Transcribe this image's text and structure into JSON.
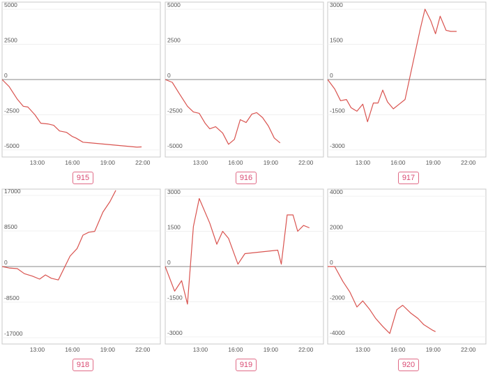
{
  "colors": {
    "line": "#d9534f",
    "zero_line": "#8a8a8a",
    "frame": "#c8c8c8",
    "grid": "#eeeeee",
    "badge": "#e06a86"
  },
  "chart_data": [
    {
      "type": "line",
      "title": "915",
      "ylim": [
        -5500,
        5500
      ],
      "xlim": [
        10,
        23.5
      ],
      "yticks": [
        5000,
        2500,
        0,
        -2500,
        -5000
      ],
      "ytick_labels": [
        "5000",
        "2500",
        "0",
        "-2500",
        "-5000"
      ],
      "xticks": [
        13,
        16,
        19,
        22
      ],
      "xtick_labels": [
        "13:00",
        "16:00",
        "19:00",
        "22:00"
      ],
      "series": [
        {
          "x": [
            10,
            10.6,
            11.3,
            11.8,
            12.2,
            12.8,
            13.3,
            13.9,
            14.4,
            14.9,
            15.5,
            16,
            16.3,
            16.9,
            21.5,
            21.9
          ],
          "y": [
            0,
            -500,
            -1400,
            -1900,
            -1950,
            -2500,
            -3100,
            -3150,
            -3250,
            -3650,
            -3750,
            -4050,
            -4150,
            -4450,
            -4800,
            -4780
          ]
        }
      ]
    },
    {
      "type": "line",
      "title": "916",
      "ylim": [
        -5500,
        5500
      ],
      "xlim": [
        10,
        23.5
      ],
      "yticks": [
        5000,
        2500,
        0,
        -2500,
        -5000
      ],
      "ytick_labels": [
        "5000",
        "2500",
        "0",
        "-2500",
        "-5000"
      ],
      "xticks": [
        13,
        16,
        19,
        22
      ],
      "xtick_labels": [
        "13:00",
        "16:00",
        "19:00",
        "22:00"
      ],
      "series": [
        {
          "x": [
            10,
            10.6,
            11.2,
            11.9,
            12.4,
            12.9,
            13.4,
            13.8,
            14.3,
            14.9,
            15.4,
            15.9,
            16.4,
            16.9,
            17.4,
            17.8,
            18.3,
            18.8,
            19.3,
            19.8
          ],
          "y": [
            0,
            -200,
            -1000,
            -1900,
            -2300,
            -2400,
            -3100,
            -3500,
            -3350,
            -3800,
            -4600,
            -4250,
            -2850,
            -3050,
            -2450,
            -2350,
            -2700,
            -3300,
            -4150,
            -4500
          ]
        }
      ]
    },
    {
      "type": "line",
      "title": "917",
      "ylim": [
        -3300,
        3300
      ],
      "xlim": [
        10,
        23.5
      ],
      "yticks": [
        3000,
        1500,
        0,
        -1500,
        -3000
      ],
      "ytick_labels": [
        "3000",
        "1500",
        "0",
        "-1500",
        "-3000"
      ],
      "xticks": [
        13,
        16,
        19,
        22
      ],
      "xtick_labels": [
        "13:00",
        "16:00",
        "19:00",
        "22:00"
      ],
      "series": [
        {
          "x": [
            10,
            10.6,
            11.1,
            11.6,
            12,
            12.5,
            13,
            13.4,
            13.9,
            14.3,
            14.7,
            15.1,
            15.6,
            16.1,
            16.6,
            17.9,
            18.3,
            18.8,
            19.2,
            19.6,
            20.1,
            20.5,
            21
          ],
          "y": [
            0,
            -400,
            -900,
            -850,
            -1200,
            -1350,
            -1050,
            -1800,
            -1000,
            -1000,
            -450,
            -950,
            -1250,
            -1050,
            -850,
            2150,
            3000,
            2500,
            1950,
            2700,
            2100,
            2050,
            2050
          ]
        }
      ]
    },
    {
      "type": "line",
      "title": "918",
      "ylim": [
        -18500,
        18500
      ],
      "xlim": [
        10,
        23.5
      ],
      "yticks": [
        17000,
        8500,
        0,
        -8500,
        -17000
      ],
      "ytick_labels": [
        "17000",
        "8500",
        "0",
        "-8500",
        "-17000"
      ],
      "xticks": [
        13,
        16,
        19,
        22
      ],
      "xtick_labels": [
        "13:00",
        "16:00",
        "19:00",
        "22:00"
      ],
      "series": [
        {
          "x": [
            10,
            10.6,
            11.3,
            11.9,
            12.6,
            13.2,
            13.7,
            14.2,
            14.8,
            15.8,
            16.4,
            16.9,
            17.4,
            17.9,
            18.6,
            19.2,
            19.7
          ],
          "y": [
            0,
            -350,
            -500,
            -1700,
            -2300,
            -3000,
            -2000,
            -2800,
            -3200,
            2500,
            4300,
            7500,
            8200,
            8400,
            13000,
            15500,
            18200
          ]
        }
      ]
    },
    {
      "type": "line",
      "title": "919",
      "ylim": [
        -3300,
        3300
      ],
      "xlim": [
        10,
        23.5
      ],
      "yticks": [
        3000,
        1500,
        0,
        -1500,
        -3000
      ],
      "ytick_labels": [
        "3000",
        "1500",
        "0",
        "-1500",
        "-3000"
      ],
      "xticks": [
        13,
        16,
        19,
        22
      ],
      "xtick_labels": [
        "13:00",
        "16:00",
        "19:00",
        "22:00"
      ],
      "series": [
        {
          "x": [
            10,
            10.8,
            11.4,
            11.9,
            12.4,
            12.9,
            13.8,
            14.4,
            14.9,
            15.4,
            16.2,
            16.8,
            19.6,
            19.9,
            20.4,
            20.9,
            21.3,
            21.8,
            22.3
          ],
          "y": [
            0,
            -1050,
            -600,
            -1600,
            1700,
            2900,
            1850,
            950,
            1500,
            1200,
            100,
            550,
            700,
            100,
            2200,
            2200,
            1500,
            1750,
            1650
          ]
        }
      ]
    },
    {
      "type": "line",
      "title": "920",
      "ylim": [
        -4400,
        4400
      ],
      "xlim": [
        10,
        23.5
      ],
      "yticks": [
        4000,
        2000,
        0,
        -2000,
        -4000
      ],
      "ytick_labels": [
        "4000",
        "2000",
        "0",
        "-2000",
        "-4000"
      ],
      "xticks": [
        13,
        16,
        19,
        22
      ],
      "xtick_labels": [
        "13:00",
        "16:00",
        "19:00",
        "22:00"
      ],
      "series": [
        {
          "x": [
            10,
            10.6,
            11.3,
            11.9,
            12.5,
            13,
            13.6,
            14.1,
            14.7,
            15.3,
            15.9,
            16.4,
            17.1,
            17.7,
            18.2,
            18.9,
            19.2
          ],
          "y": [
            0,
            0,
            -850,
            -1450,
            -2300,
            -1950,
            -2450,
            -2950,
            -3400,
            -3800,
            -2450,
            -2200,
            -2650,
            -2950,
            -3300,
            -3600,
            -3700
          ]
        }
      ]
    }
  ]
}
